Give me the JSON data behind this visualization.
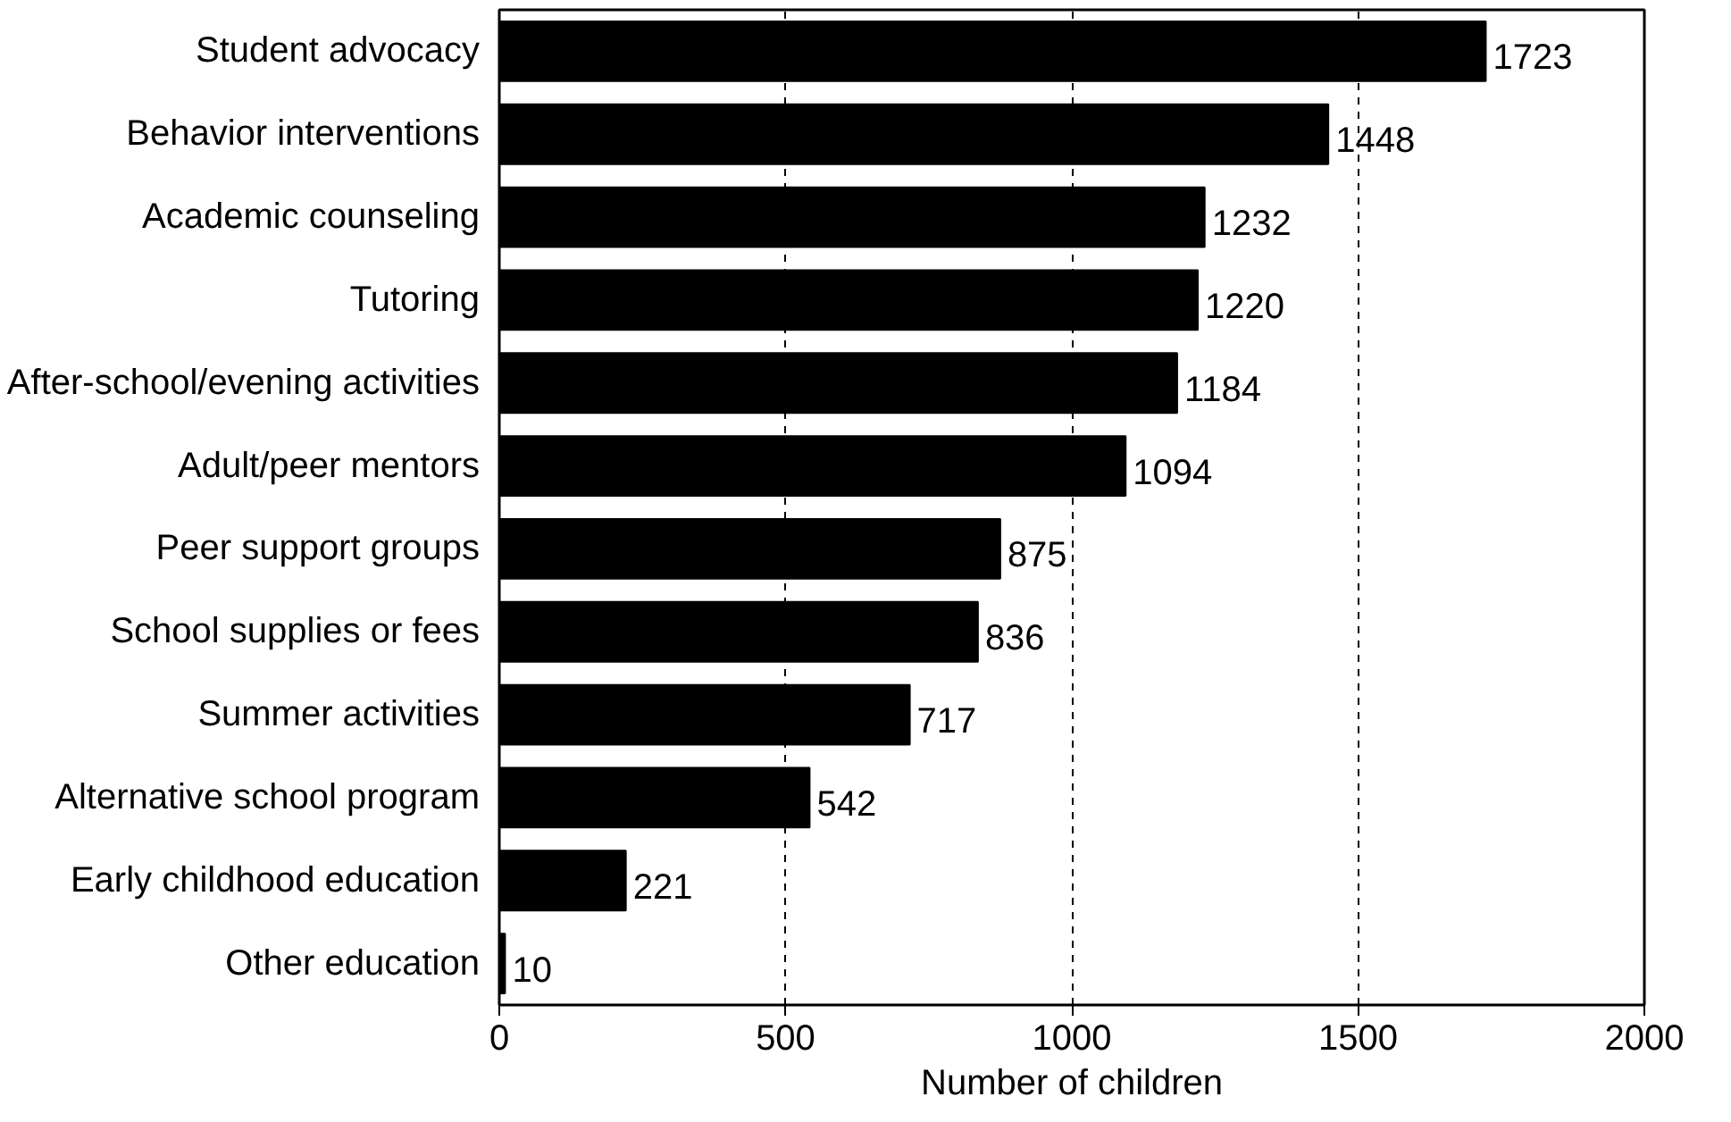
{
  "chart_data": {
    "type": "bar",
    "orientation": "horizontal",
    "xlabel": "Number of children",
    "categories": [
      "Student advocacy",
      "Behavior interventions",
      "Academic counseling",
      "Tutoring",
      "After-school/evening activities",
      "Adult/peer mentors",
      "Peer support groups",
      "School supplies or fees",
      "Summer activities",
      "Alternative school program",
      "Early childhood education",
      "Other education"
    ],
    "values": [
      1723,
      1448,
      1232,
      1220,
      1184,
      1094,
      875,
      836,
      717,
      542,
      221,
      10
    ],
    "color": "#000000",
    "xlim": [
      0,
      2000
    ],
    "xticks": [
      0,
      500,
      1000,
      1500,
      2000
    ],
    "grid": "x",
    "data_labels": true
  }
}
